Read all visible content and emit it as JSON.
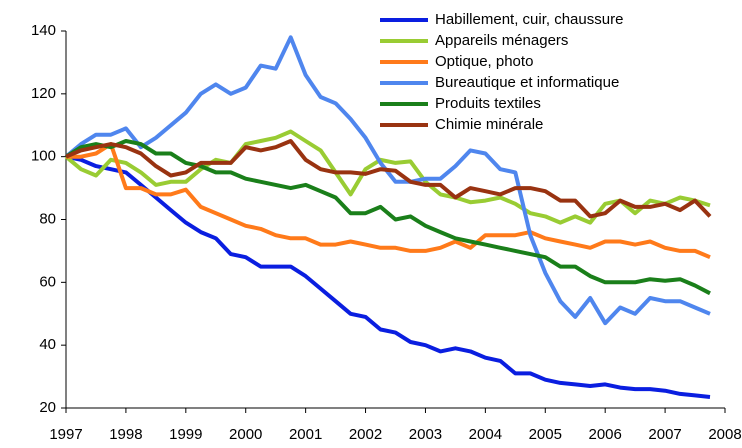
{
  "chart_data": {
    "type": "line",
    "x": [
      1997,
      1997.25,
      1997.5,
      1997.75,
      1998,
      1998.25,
      1998.5,
      1998.75,
      1999,
      1999.25,
      1999.5,
      1999.75,
      2000,
      2000.25,
      2000.5,
      2000.75,
      2001,
      2001.25,
      2001.5,
      2001.75,
      2002,
      2002.25,
      2002.5,
      2002.75,
      2003,
      2003.25,
      2003.5,
      2003.75,
      2004,
      2004.25,
      2004.5,
      2004.75,
      2005,
      2005.25,
      2005.5,
      2005.75,
      2006,
      2006.25,
      2006.5,
      2006.75,
      2007,
      2007.25,
      2007.5,
      2007.75
    ],
    "xlim": [
      1997,
      2008
    ],
    "xticks": [
      1997,
      1998,
      1999,
      2000,
      2001,
      2002,
      2003,
      2004,
      2005,
      2006,
      2007,
      2008
    ],
    "ylim": [
      20,
      140
    ],
    "yticks": [
      20,
      40,
      60,
      80,
      100,
      120,
      140
    ],
    "grid": false,
    "legend": "upper right",
    "series": [
      {
        "name": "Habillement, cuir, chaussure",
        "color": "#0a1ee0",
        "values": [
          100,
          99,
          97,
          96,
          95,
          91,
          87,
          83,
          79,
          76,
          74,
          69,
          68,
          65,
          65,
          65,
          62,
          58,
          54,
          50,
          49,
          45,
          44,
          41,
          40,
          38,
          39,
          38,
          36,
          35,
          31,
          31,
          29,
          28,
          27.5,
          27,
          27.5,
          26.5,
          26,
          26,
          25.5,
          24.5,
          24,
          23.5
        ]
      },
      {
        "name": "Appareils ménagers",
        "color": "#99cc33",
        "values": [
          100,
          96,
          94,
          99,
          98,
          95,
          91,
          92,
          92,
          96,
          99,
          98,
          104,
          105,
          106,
          108,
          105,
          102,
          95,
          88,
          96,
          99,
          98,
          98.5,
          92,
          88,
          87,
          85.5,
          86,
          87,
          85,
          82,
          81,
          79,
          81,
          79,
          85,
          86,
          82,
          86,
          85,
          87,
          86,
          84.5
        ]
      },
      {
        "name": "Optique, photo",
        "color": "#ff7a1a",
        "values": [
          100,
          100,
          101,
          104,
          90,
          90,
          88,
          88,
          89.5,
          84,
          82,
          80,
          78,
          77,
          75,
          74,
          74,
          72,
          72,
          73,
          72,
          71,
          71,
          70,
          70,
          71,
          73,
          71,
          75,
          75,
          75,
          76,
          74,
          73,
          72,
          71,
          73,
          73,
          72,
          73,
          71,
          70,
          70,
          68
        ]
      },
      {
        "name": "Bureautique et informatique",
        "color": "#4f86ee",
        "values": [
          100,
          104,
          107,
          107,
          109,
          103,
          106,
          110,
          114,
          120,
          123,
          120,
          122,
          129,
          128,
          138,
          126,
          119,
          117,
          112,
          106,
          98,
          92,
          92,
          93,
          93,
          97,
          102,
          101,
          96,
          95,
          75,
          63,
          54,
          49,
          55,
          47,
          52,
          50,
          55,
          54,
          54,
          52,
          50
        ]
      },
      {
        "name": "Produits textiles",
        "color": "#1a7f1a",
        "values": [
          100,
          103,
          104,
          103,
          105,
          104,
          101,
          101,
          98,
          97,
          95,
          95,
          93,
          92,
          91,
          90,
          91,
          89,
          87,
          82,
          82,
          84,
          80,
          81,
          78,
          76,
          74,
          73,
          72,
          71,
          70,
          69,
          68,
          65,
          65,
          62,
          60,
          60,
          60,
          61,
          60.5,
          61,
          59,
          56.5
        ]
      },
      {
        "name": "Chimie minérale",
        "color": "#993311",
        "values": [
          100,
          102,
          103,
          104,
          103,
          101,
          97,
          94,
          95,
          98,
          98,
          98,
          103,
          102,
          103,
          105,
          99,
          96,
          95,
          95,
          94.5,
          96,
          95.5,
          92,
          91,
          91,
          87,
          90,
          89,
          88,
          90,
          90,
          89,
          86,
          86,
          81,
          82,
          86,
          84,
          84,
          85,
          83,
          86,
          81
        ]
      }
    ]
  }
}
